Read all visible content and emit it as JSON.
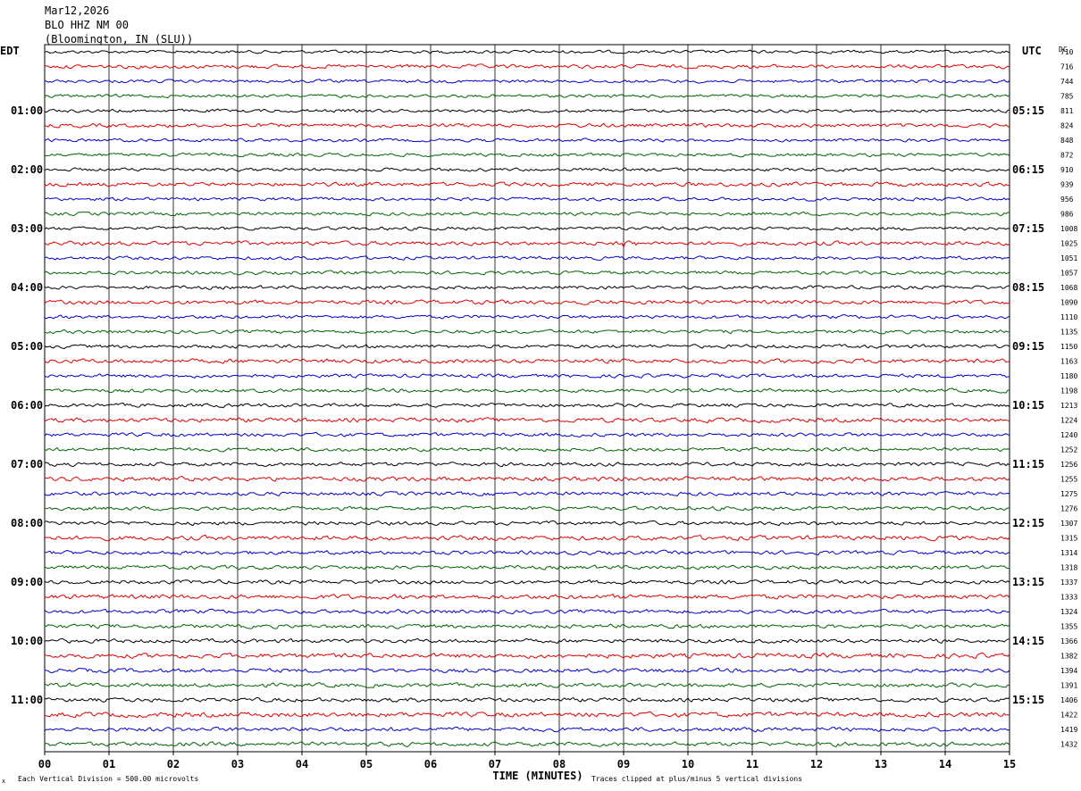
{
  "header": {
    "date": "Mar12,2026",
    "station": "BLO HHZ NM 00",
    "location": "(Bloomington, IN (SLU))"
  },
  "axes": {
    "left_label": "EDT",
    "right_label": "UTC",
    "dc_label": "DC"
  },
  "footer": {
    "scale_text": "Each Vertical Division =  500.00 microvolts",
    "clip_text": "Traces clipped at plus/minus 5 vertical divisions",
    "small_mark": "x"
  },
  "chart_data": {
    "type": "line",
    "title": "Mar12,2026 BLO HHZ NM 00 (Bloomington, IN (SLU))",
    "xlabel": "TIME (MINUTES)",
    "xlim": [
      0,
      15
    ],
    "x_ticks": [
      "00",
      "01",
      "02",
      "03",
      "04",
      "05",
      "06",
      "07",
      "08",
      "09",
      "10",
      "11",
      "12",
      "13",
      "14",
      "15"
    ],
    "grid": true,
    "trace_colors": [
      "#000000",
      "#dd0000",
      "#0000cc",
      "#006400"
    ],
    "trace_count": 48,
    "edt_labels": [
      "01:00",
      "02:00",
      "03:00",
      "04:00",
      "05:00",
      "06:00",
      "07:00",
      "08:00",
      "09:00",
      "10:00",
      "11:00"
    ],
    "utc_labels": [
      "05:15",
      "06:15",
      "07:15",
      "08:15",
      "09:15",
      "10:15",
      "11:15",
      "12:15",
      "13:15",
      "14:15",
      "15:15"
    ],
    "dc_values": [
      710,
      716,
      744,
      785,
      811,
      824,
      848,
      872,
      910,
      939,
      956,
      986,
      1008,
      1025,
      1051,
      1057,
      1068,
      1090,
      1110,
      1135,
      1150,
      1163,
      1180,
      1198,
      1213,
      1224,
      1240,
      1252,
      1256,
      1255,
      1275,
      1276,
      1307,
      1315,
      1314,
      1318,
      1337,
      1333,
      1324,
      1355,
      1366,
      1382,
      1394,
      1391,
      1406,
      1422,
      1419,
      1432
    ],
    "events": [
      {
        "trace": 13,
        "minute": 9.05,
        "amplitude": "small local event"
      }
    ]
  }
}
